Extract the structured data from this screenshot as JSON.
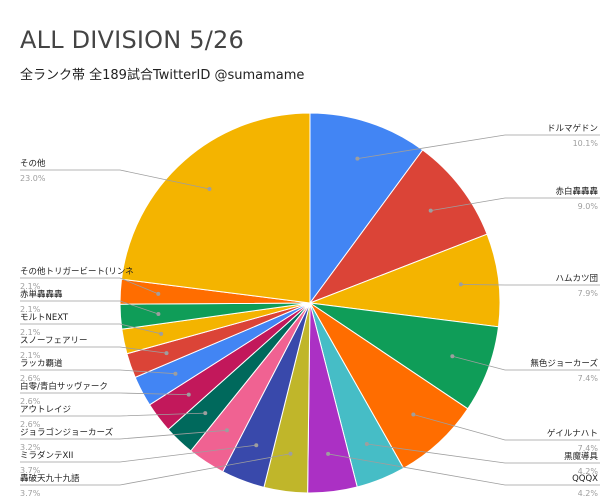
{
  "title": "ALL DIVISION 5/26",
  "subtitle": "全ランク帯 全189試合TwitterID @sumamame",
  "chart_data": {
    "type": "pie",
    "title": "ALL DIVISION 5/26",
    "subtitle": "全ランク帯 全189試合TwitterID @sumamame",
    "start_angle": "top",
    "direction": "clockwise",
    "slices": [
      {
        "label": "ドルマゲドン",
        "value": 10.1,
        "pct": "10.1%",
        "color": "#4285f4"
      },
      {
        "label": "赤白轟轟轟",
        "value": 9.0,
        "pct": "9.0%",
        "color": "#db4437"
      },
      {
        "label": "ハムカツ団",
        "value": 7.9,
        "pct": "7.9%",
        "color": "#f4b400"
      },
      {
        "label": "無色ジョーカーズ",
        "value": 7.4,
        "pct": "7.4%",
        "color": "#0f9d58"
      },
      {
        "label": "ゲイルナハト",
        "value": 7.4,
        "pct": "7.4%",
        "color": "#ff6d00"
      },
      {
        "label": "黒魔導具",
        "value": 4.2,
        "pct": "4.2%",
        "color": "#46bdc6"
      },
      {
        "label": "QQQX",
        "value": 4.2,
        "pct": "4.2%",
        "color": "#ab30c4"
      },
      {
        "label": "轟破天九十九語",
        "value": 3.7,
        "pct": "3.7%",
        "color": "#c0b62a"
      },
      {
        "label": "ミラダンテXII",
        "value": 3.7,
        "pct": "3.7%",
        "color": "#3949ab"
      },
      {
        "label": "ジョラゴンジョーカーズ",
        "value": 3.2,
        "pct": "3.2%",
        "color": "#f06292"
      },
      {
        "label": "アウトレイジ",
        "value": 2.6,
        "pct": "2.6%",
        "color": "#00695c"
      },
      {
        "label": "白零/青白サッヴァーク",
        "value": 2.6,
        "pct": "2.6%",
        "color": "#c2185b"
      },
      {
        "label": "ラッカ覇道",
        "value": 2.6,
        "pct": "2.6%",
        "color": "#4285f4"
      },
      {
        "label": "スノーフェアリー",
        "value": 2.1,
        "pct": "2.1%",
        "color": "#db4437"
      },
      {
        "label": "モルトNEXT",
        "value": 2.1,
        "pct": "2.1%",
        "color": "#f4b400"
      },
      {
        "label": "赤単轟轟轟",
        "value": 2.1,
        "pct": "2.1%",
        "color": "#0f9d58"
      },
      {
        "label": "その他トリガービート(リンネ",
        "value": 2.1,
        "pct": "2.1%",
        "color": "#ff6d00"
      },
      {
        "label": "その他",
        "value": 23.0,
        "pct": "23.0%",
        "color": "#f4b400"
      }
    ]
  }
}
